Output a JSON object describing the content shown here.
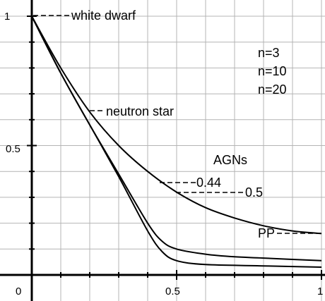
{
  "chart_data": {
    "type": "line",
    "xlim": [
      0,
      1
    ],
    "ylim": [
      0,
      1
    ],
    "grid": true,
    "x_ticks": [
      {
        "value": 0,
        "label": "0"
      },
      {
        "value": 0.5,
        "label": "0.5"
      },
      {
        "value": 1,
        "label": "1"
      }
    ],
    "y_ticks": [
      {
        "value": 0.5,
        "label": "0.5"
      },
      {
        "value": 1,
        "label": "1"
      }
    ],
    "series": [
      {
        "name": "n=3",
        "points": [
          [
            0,
            1
          ],
          [
            0.1,
            0.8
          ],
          [
            0.2,
            0.63
          ],
          [
            0.3,
            0.5
          ],
          [
            0.4,
            0.4
          ],
          [
            0.5,
            0.32
          ],
          [
            0.6,
            0.26
          ],
          [
            0.7,
            0.22
          ],
          [
            0.8,
            0.19
          ],
          [
            0.9,
            0.17
          ],
          [
            1,
            0.16
          ]
        ]
      },
      {
        "name": "n=10",
        "points": [
          [
            0,
            1
          ],
          [
            0.1,
            0.78
          ],
          [
            0.2,
            0.58
          ],
          [
            0.3,
            0.39
          ],
          [
            0.4,
            0.2
          ],
          [
            0.45,
            0.13
          ],
          [
            0.5,
            0.1
          ],
          [
            0.6,
            0.08
          ],
          [
            0.7,
            0.07
          ],
          [
            0.8,
            0.065
          ],
          [
            1,
            0.055
          ]
        ]
      },
      {
        "name": "n=20",
        "points": [
          [
            0,
            1
          ],
          [
            0.1,
            0.78
          ],
          [
            0.2,
            0.58
          ],
          [
            0.3,
            0.38
          ],
          [
            0.4,
            0.17
          ],
          [
            0.45,
            0.09
          ],
          [
            0.5,
            0.055
          ],
          [
            0.6,
            0.04
          ],
          [
            0.8,
            0.035
          ],
          [
            1,
            0.03
          ]
        ]
      }
    ],
    "legend_entries": [
      "n=3",
      "n=10",
      "n=20"
    ],
    "annotations": [
      {
        "text": "white dwarf",
        "x": 0,
        "y": 1
      },
      {
        "text": "neutron star",
        "x": 0.2,
        "y": 0.63
      },
      {
        "text": "AGNs"
      },
      {
        "text": "0.44",
        "x": 0.44,
        "y": 0.36
      },
      {
        "text": "0.5",
        "x": 0.5,
        "y": 0.32
      },
      {
        "text": "PP",
        "x": 1,
        "y": 0.16
      }
    ]
  }
}
